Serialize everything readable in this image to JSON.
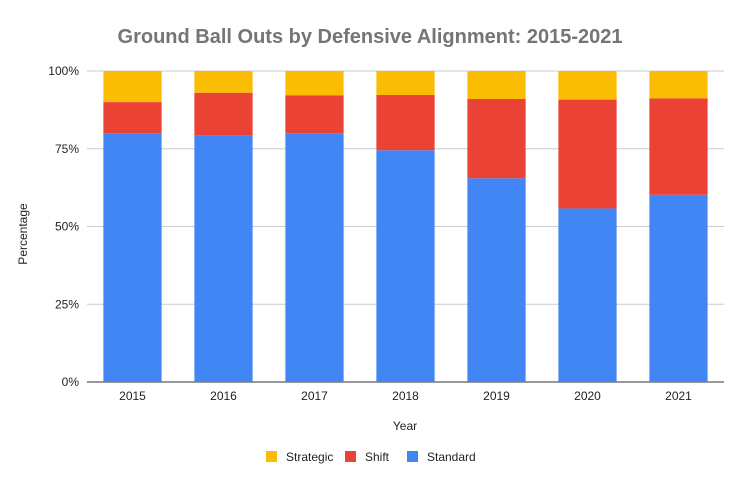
{
  "chart_data": {
    "type": "bar",
    "stacked": true,
    "title": "Ground Ball Outs by Defensive Alignment: 2015-2021",
    "xlabel": "Year",
    "ylabel": "Percentage",
    "ylim": [
      0,
      100
    ],
    "yticks": [
      "0%",
      "25%",
      "50%",
      "75%",
      "100%"
    ],
    "categories": [
      "2015",
      "2016",
      "2017",
      "2018",
      "2019",
      "2020",
      "2021"
    ],
    "series": [
      {
        "name": "Standard",
        "color": "#4285f4",
        "values": [
          80.0,
          79.2,
          80.0,
          74.5,
          65.5,
          55.8,
          60.2
        ]
      },
      {
        "name": "Shift",
        "color": "#ea4335",
        "values": [
          10.0,
          13.8,
          12.2,
          17.8,
          25.5,
          35.0,
          31.0
        ]
      },
      {
        "name": "Strategic",
        "color": "#fbbc04",
        "values": [
          10.0,
          7.0,
          7.8,
          7.7,
          9.0,
          9.2,
          8.8
        ]
      }
    ],
    "legend": {
      "position": "bottom",
      "order": [
        "Strategic",
        "Shift",
        "Standard"
      ]
    },
    "grid": true
  }
}
